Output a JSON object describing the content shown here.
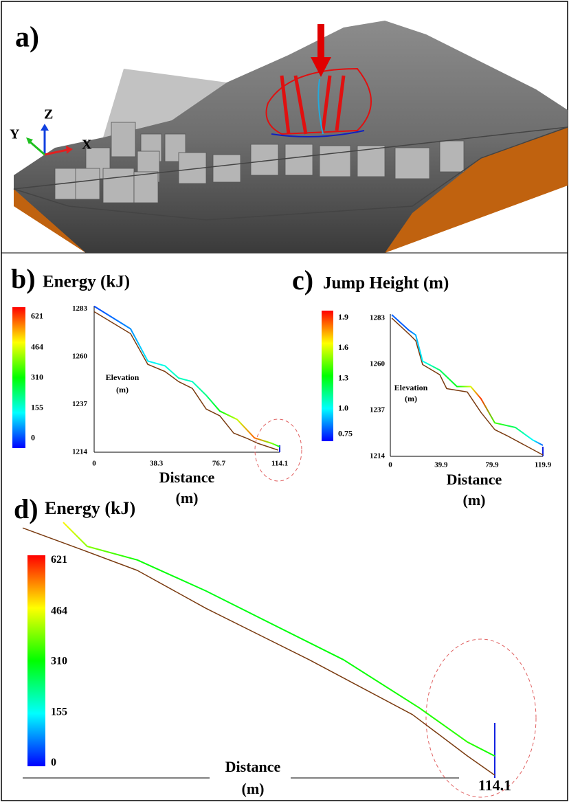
{
  "panel_a": {
    "label": "a)",
    "axes": {
      "x": "X",
      "y": "Y",
      "z": "Z"
    }
  },
  "chart_data": [
    {
      "type": "line",
      "panel_label": "b)",
      "title": "Energy (kJ)",
      "x_label": [
        "Distance",
        "(m)"
      ],
      "y_label": [
        "Elevation",
        "(m)"
      ],
      "xlim": [
        0,
        114.1
      ],
      "ylim": [
        1214,
        1284.5
      ],
      "xticks": [
        0,
        38.3,
        76.7,
        114.1
      ],
      "yticks": [
        1214,
        1237,
        1260,
        1283
      ],
      "colorbar": {
        "clim": [
          -50,
          670
        ],
        "ticks": [
          0,
          155,
          310,
          464,
          621
        ]
      },
      "series": [
        {
          "color": "#7a3b10",
          "x": [
            0,
            22.4,
            33,
            43.5,
            52,
            60.4,
            68.9,
            77.3,
            85.8,
            94.2,
            100.5,
            113.2
          ],
          "values": [
            1281.7,
            1271.1,
            1256.3,
            1252.9,
            1248,
            1244.7,
            1234.8,
            1231.5,
            1223.2,
            1220.6,
            1218.3,
            1215
          ]
        },
        {
          "x": [
            0,
            22.4,
            33,
            43.5,
            52,
            60.4,
            68.9,
            77.3,
            87.9,
            98.6,
            109.1,
            114.1
          ],
          "values": [
            1284.3,
            1273.4,
            1257.9,
            1255.6,
            1249.7,
            1248,
            1241.4,
            1233.8,
            1229.8,
            1220.9,
            1218.3,
            1216.6
          ],
          "color_values": [
            0,
            50,
            120,
            150,
            180,
            170,
            220,
            300,
            450,
            600,
            400,
            300
          ]
        }
      ]
    },
    {
      "type": "line",
      "panel_label": "c)",
      "title": "Jump Height (m)",
      "x_label": [
        "Distance",
        "(m)"
      ],
      "y_label": [
        "Elevation",
        "(m)"
      ],
      "xlim": [
        0,
        119.9
      ],
      "ylim": [
        1214,
        1285
      ],
      "xticks": [
        0,
        39.9,
        79.9,
        119.9
      ],
      "yticks": [
        1214,
        1237,
        1260,
        1283
      ],
      "colorbar": {
        "clim": [
          0.68,
          1.97
        ],
        "ticks": [
          0.75,
          {
            "value": 1.0,
            "label": "1.0"
          },
          1.3,
          1.6,
          1.9
        ]
      },
      "series": [
        {
          "color": "#7a3b10",
          "x": [
            1.1,
            14.6,
            20,
            25.4,
            38.9,
            44.3,
            60.5,
            71.3,
            82.1,
            92.9,
            119.9
          ],
          "values": [
            1283,
            1275.1,
            1271.7,
            1259.8,
            1254.7,
            1247.8,
            1246.1,
            1235.9,
            1227.3,
            1223.9,
            1214.7
          ]
        },
        {
          "x": [
            1.1,
            14.6,
            20,
            25.4,
            38.9,
            52.4,
            63.2,
            71.3,
            82.1,
            98.3,
            111.8,
            119.9
          ],
          "values": [
            1284.7,
            1276.9,
            1274.5,
            1261.5,
            1257,
            1248.8,
            1248.8,
            1242.7,
            1230.7,
            1228.4,
            1222.2,
            1219.5
          ],
          "color_values": [
            0.8,
            0.8,
            0.9,
            1.0,
            1.2,
            1.3,
            1.6,
            1.9,
            1.4,
            1.2,
            1.0,
            0.8
          ]
        }
      ]
    },
    {
      "type": "line",
      "panel_label": "d)",
      "title": "Energy (kJ)",
      "x_label": [
        "Distance",
        "(m)"
      ],
      "xlim": [
        0,
        114.1
      ],
      "ylim": [
        1212,
        1286
      ],
      "xticks": [
        114.1
      ],
      "colorbar": {
        "clim": [
          -10,
          636
        ],
        "ticks": [
          0,
          155,
          310,
          464,
          621
        ]
      },
      "series": [
        {
          "color": "#7a3b10",
          "x": [
            0,
            14.4,
            27.7,
            44.3,
            69.3,
            94.2,
            107.5,
            114.1
          ],
          "values": [
            1283.4,
            1277.1,
            1271.2,
            1260.3,
            1245.5,
            1229.8,
            1217.9,
            1212.4
          ]
        },
        {
          "x": [
            9.8,
            15.6,
            27.7,
            44.3,
            77.6,
            95.9,
            107.5,
            114.1
          ],
          "values": [
            1285,
            1278.1,
            1274.2,
            1265.3,
            1245.5,
            1231.7,
            1221.9,
            1217.9
          ],
          "color_values": [
            480,
            400,
            320,
            300,
            310,
            330,
            340,
            320
          ]
        }
      ]
    }
  ]
}
